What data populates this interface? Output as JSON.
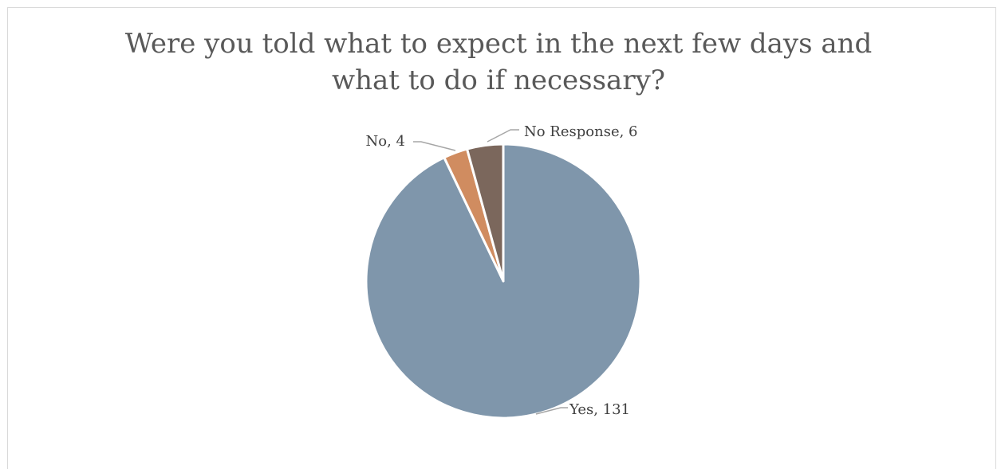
{
  "chart_data": {
    "type": "pie",
    "title": "Were you told what to expect in the next few days and what to do if necessary?",
    "categories": [
      "Yes",
      "No",
      "No Response"
    ],
    "values": [
      131,
      4,
      6
    ],
    "data_labels": [
      "Yes, 131",
      "No, 4",
      "No Response, 6"
    ],
    "colors": [
      "#7f96ab",
      "#d08c60",
      "#7b675c"
    ],
    "start_angle": "12 o'clock, clockwise",
    "legend": "none"
  }
}
